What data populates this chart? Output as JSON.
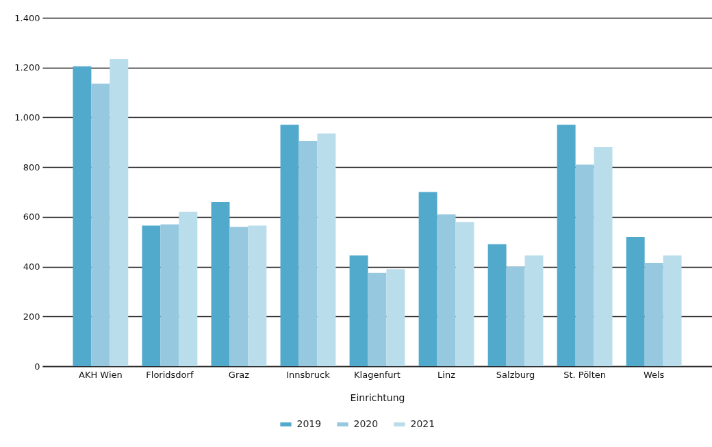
{
  "chart_data": {
    "type": "bar",
    "xlabel": "Einrichtung",
    "categories": [
      "AKH Wien",
      "Floridsdorf",
      "Graz",
      "Innsbruck",
      "Klagenfurt",
      "Linz",
      "Salzburg",
      "St. Pölten",
      "Wels"
    ],
    "series": [
      {
        "name": "2019",
        "color": "#51a9cc",
        "values": [
          1205,
          565,
          660,
          970,
          445,
          700,
          490,
          970,
          520
        ]
      },
      {
        "name": "2020",
        "color": "#96c9df",
        "values": [
          1135,
          570,
          560,
          905,
          375,
          610,
          400,
          810,
          415
        ]
      },
      {
        "name": "2021",
        "color": "#baddeb",
        "values": [
          1235,
          620,
          565,
          935,
          390,
          580,
          445,
          880,
          445
        ]
      }
    ],
    "ylim": [
      0,
      1400
    ],
    "yticks": [
      0,
      200,
      400,
      600,
      800,
      {
        "value": 1000,
        "label": "1.000"
      },
      {
        "value": 1200,
        "label": "1.200"
      },
      {
        "value": 1400,
        "label": "1.400"
      }
    ],
    "grid": "y",
    "legend": "bottom"
  }
}
